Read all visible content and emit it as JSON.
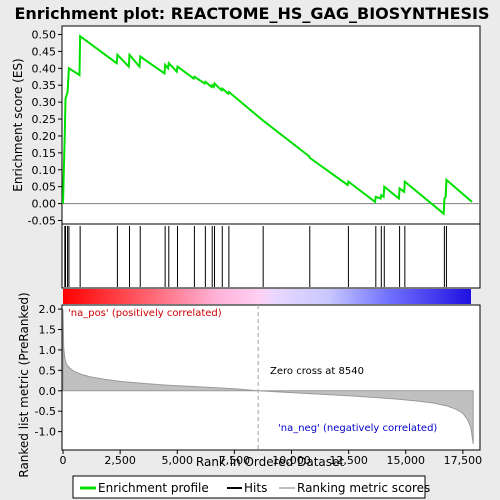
{
  "chart_data": {
    "type": "line",
    "title": "Enrichment plot: REACTOME_HS_GAG_BIOSYNTHESIS",
    "panels": {
      "enrichment": {
        "ylabel": "Enrichment score (ES)",
        "ylim": [
          -0.05,
          0.5
        ],
        "yticks": [
          -0.05,
          0.0,
          0.05,
          0.1,
          0.15,
          0.2,
          0.25,
          0.3,
          0.35,
          0.4,
          0.45,
          0.5
        ],
        "ytick_labels": [
          "-0.05",
          "0.00",
          "0.05",
          "0.10",
          "0.15",
          "0.20",
          "0.25",
          "0.30",
          "0.35",
          "0.40",
          "0.45",
          "0.50"
        ],
        "series": [
          {
            "name": "Enrichment profile",
            "color": "#00e000",
            "x": [
              0,
              80,
              110,
              200,
              260,
              720,
              750,
              2350,
              2380,
              2880,
              2910,
              3350,
              3380,
              4440,
              4470,
              4600,
              4630,
              4980,
              5010,
              5720,
              5750,
              6200,
              6230,
              6500,
              6530,
              6600,
              6630,
              6940,
              6970,
              7230,
              7260,
              8760,
              10770,
              10800,
              12460,
              12490,
              13660,
              13690,
              13900,
              13930,
              14030,
              14060,
              14700,
              14730,
              14930,
              14960,
              16660,
              16690,
              16750,
              16780,
              17900
            ],
            "y": [
              0.0,
              0.21,
              0.31,
              0.33,
              0.4,
              0.38,
              0.495,
              0.415,
              0.44,
              0.405,
              0.44,
              0.405,
              0.435,
              0.385,
              0.41,
              0.4,
              0.415,
              0.39,
              0.405,
              0.37,
              0.375,
              0.355,
              0.36,
              0.345,
              0.35,
              0.345,
              0.355,
              0.335,
              0.34,
              0.325,
              0.33,
              0.245,
              0.14,
              0.135,
              0.055,
              0.065,
              0.005,
              0.02,
              0.015,
              0.025,
              0.02,
              0.05,
              0.015,
              0.045,
              0.035,
              0.065,
              -0.03,
              0.015,
              0.02,
              0.07,
              0.005
            ]
          }
        ]
      },
      "hits": {
        "series_name": "Hits",
        "x": [
          80,
          110,
          200,
          260,
          750,
          2380,
          2910,
          3380,
          4470,
          4630,
          5010,
          5750,
          6230,
          6530,
          6630,
          6970,
          7260,
          8760,
          10800,
          12490,
          13690,
          13930,
          14060,
          14730,
          14960,
          16690,
          16780
        ]
      },
      "ranked_metric": {
        "name": "Ranking metric scores",
        "xlabel": "Rank in Ordered Dataset",
        "ylabel": "Ranked list metric (PreRanked)",
        "xlim": [
          0,
          18000
        ],
        "ylim": [
          -1.45,
          2.1
        ],
        "xticks": [
          0,
          2500,
          5000,
          7500,
          10000,
          12500,
          15000,
          17500
        ],
        "xtick_labels": [
          "0",
          "2,500",
          "5,000",
          "7,500",
          "10,000",
          "12,500",
          "15,000",
          "17,500"
        ],
        "yticks": [
          -1.0,
          -0.5,
          0.0,
          0.5,
          1.0,
          1.5,
          2.0
        ],
        "ytick_labels": [
          "-1.0",
          "-0.5",
          "0.0",
          "0.5",
          "1.0",
          "1.5",
          "2.0"
        ],
        "x": [
          0,
          30,
          80,
          150,
          300,
          500,
          800,
          1200,
          1800,
          2500,
          3500,
          4500,
          5500,
          6500,
          7500,
          8540,
          9500,
          10500,
          11500,
          12500,
          13500,
          14500,
          15500,
          16200,
          16800,
          17200,
          17500,
          17700,
          17850,
          17950
        ],
        "values": [
          2.0,
          1.05,
          0.8,
          0.65,
          0.55,
          0.47,
          0.4,
          0.34,
          0.28,
          0.23,
          0.18,
          0.14,
          0.11,
          0.08,
          0.05,
          0.0,
          -0.03,
          -0.06,
          -0.09,
          -0.12,
          -0.16,
          -0.2,
          -0.25,
          -0.3,
          -0.37,
          -0.45,
          -0.55,
          -0.7,
          -0.9,
          -1.3
        ],
        "zero_cross": 8540,
        "zero_cross_label": "Zero cross at 8540",
        "pos_label": "'na_pos' (positively correlated)",
        "neg_label": "'na_neg' (negatively correlated)",
        "pos_color": "#cc0000",
        "neg_color": "#0000cc"
      }
    },
    "legend": {
      "placement": "bottom",
      "items": [
        {
          "label": "Enrichment profile",
          "color": "#00e000"
        },
        {
          "label": "Hits",
          "color": "#000000"
        },
        {
          "label": "Ranking metric scores",
          "color": "#c0c0c0"
        }
      ]
    }
  }
}
